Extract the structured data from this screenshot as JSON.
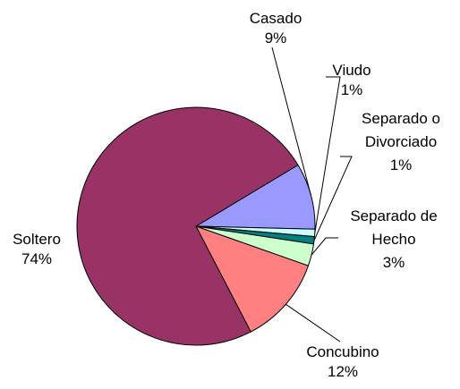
{
  "chart_data": {
    "type": "pie",
    "title": "",
    "slices": [
      {
        "label": [
          "Casado"
        ],
        "percent_label": "9%",
        "value": 9,
        "color": "#9999FF"
      },
      {
        "label": [
          "Viudo"
        ],
        "percent_label": "1%",
        "value": 1,
        "color": "#CCFFFF"
      },
      {
        "label": [
          "Separado o",
          "Divorciado"
        ],
        "percent_label": "1%",
        "value": 1,
        "color": "#008080"
      },
      {
        "label": [
          "Separado de",
          "Hecho"
        ],
        "percent_label": "3%",
        "value": 3,
        "color": "#CCFFCC"
      },
      {
        "label": [
          "Concubino"
        ],
        "percent_label": "12%",
        "value": 12,
        "color": "#FF8080"
      },
      {
        "label": [
          "Soltero"
        ],
        "percent_label": "74%",
        "value": 74,
        "color": "#993366"
      }
    ]
  }
}
